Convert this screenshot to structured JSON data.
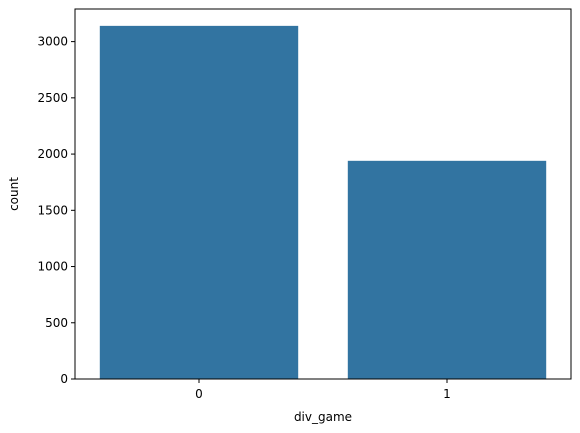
{
  "chart_data": {
    "type": "bar",
    "title": "",
    "xlabel": "div_game",
    "ylabel": "count",
    "categories": [
      "0",
      "1"
    ],
    "values": [
      3140,
      1940
    ],
    "ylim": [
      0,
      3290
    ],
    "yticks": [
      0,
      500,
      1000,
      1500,
      2000,
      2500,
      3000
    ],
    "grid": false,
    "legend": "none",
    "colors": {
      "bar": "#3274a1",
      "axis": "#000000",
      "background": "#ffffff"
    }
  }
}
